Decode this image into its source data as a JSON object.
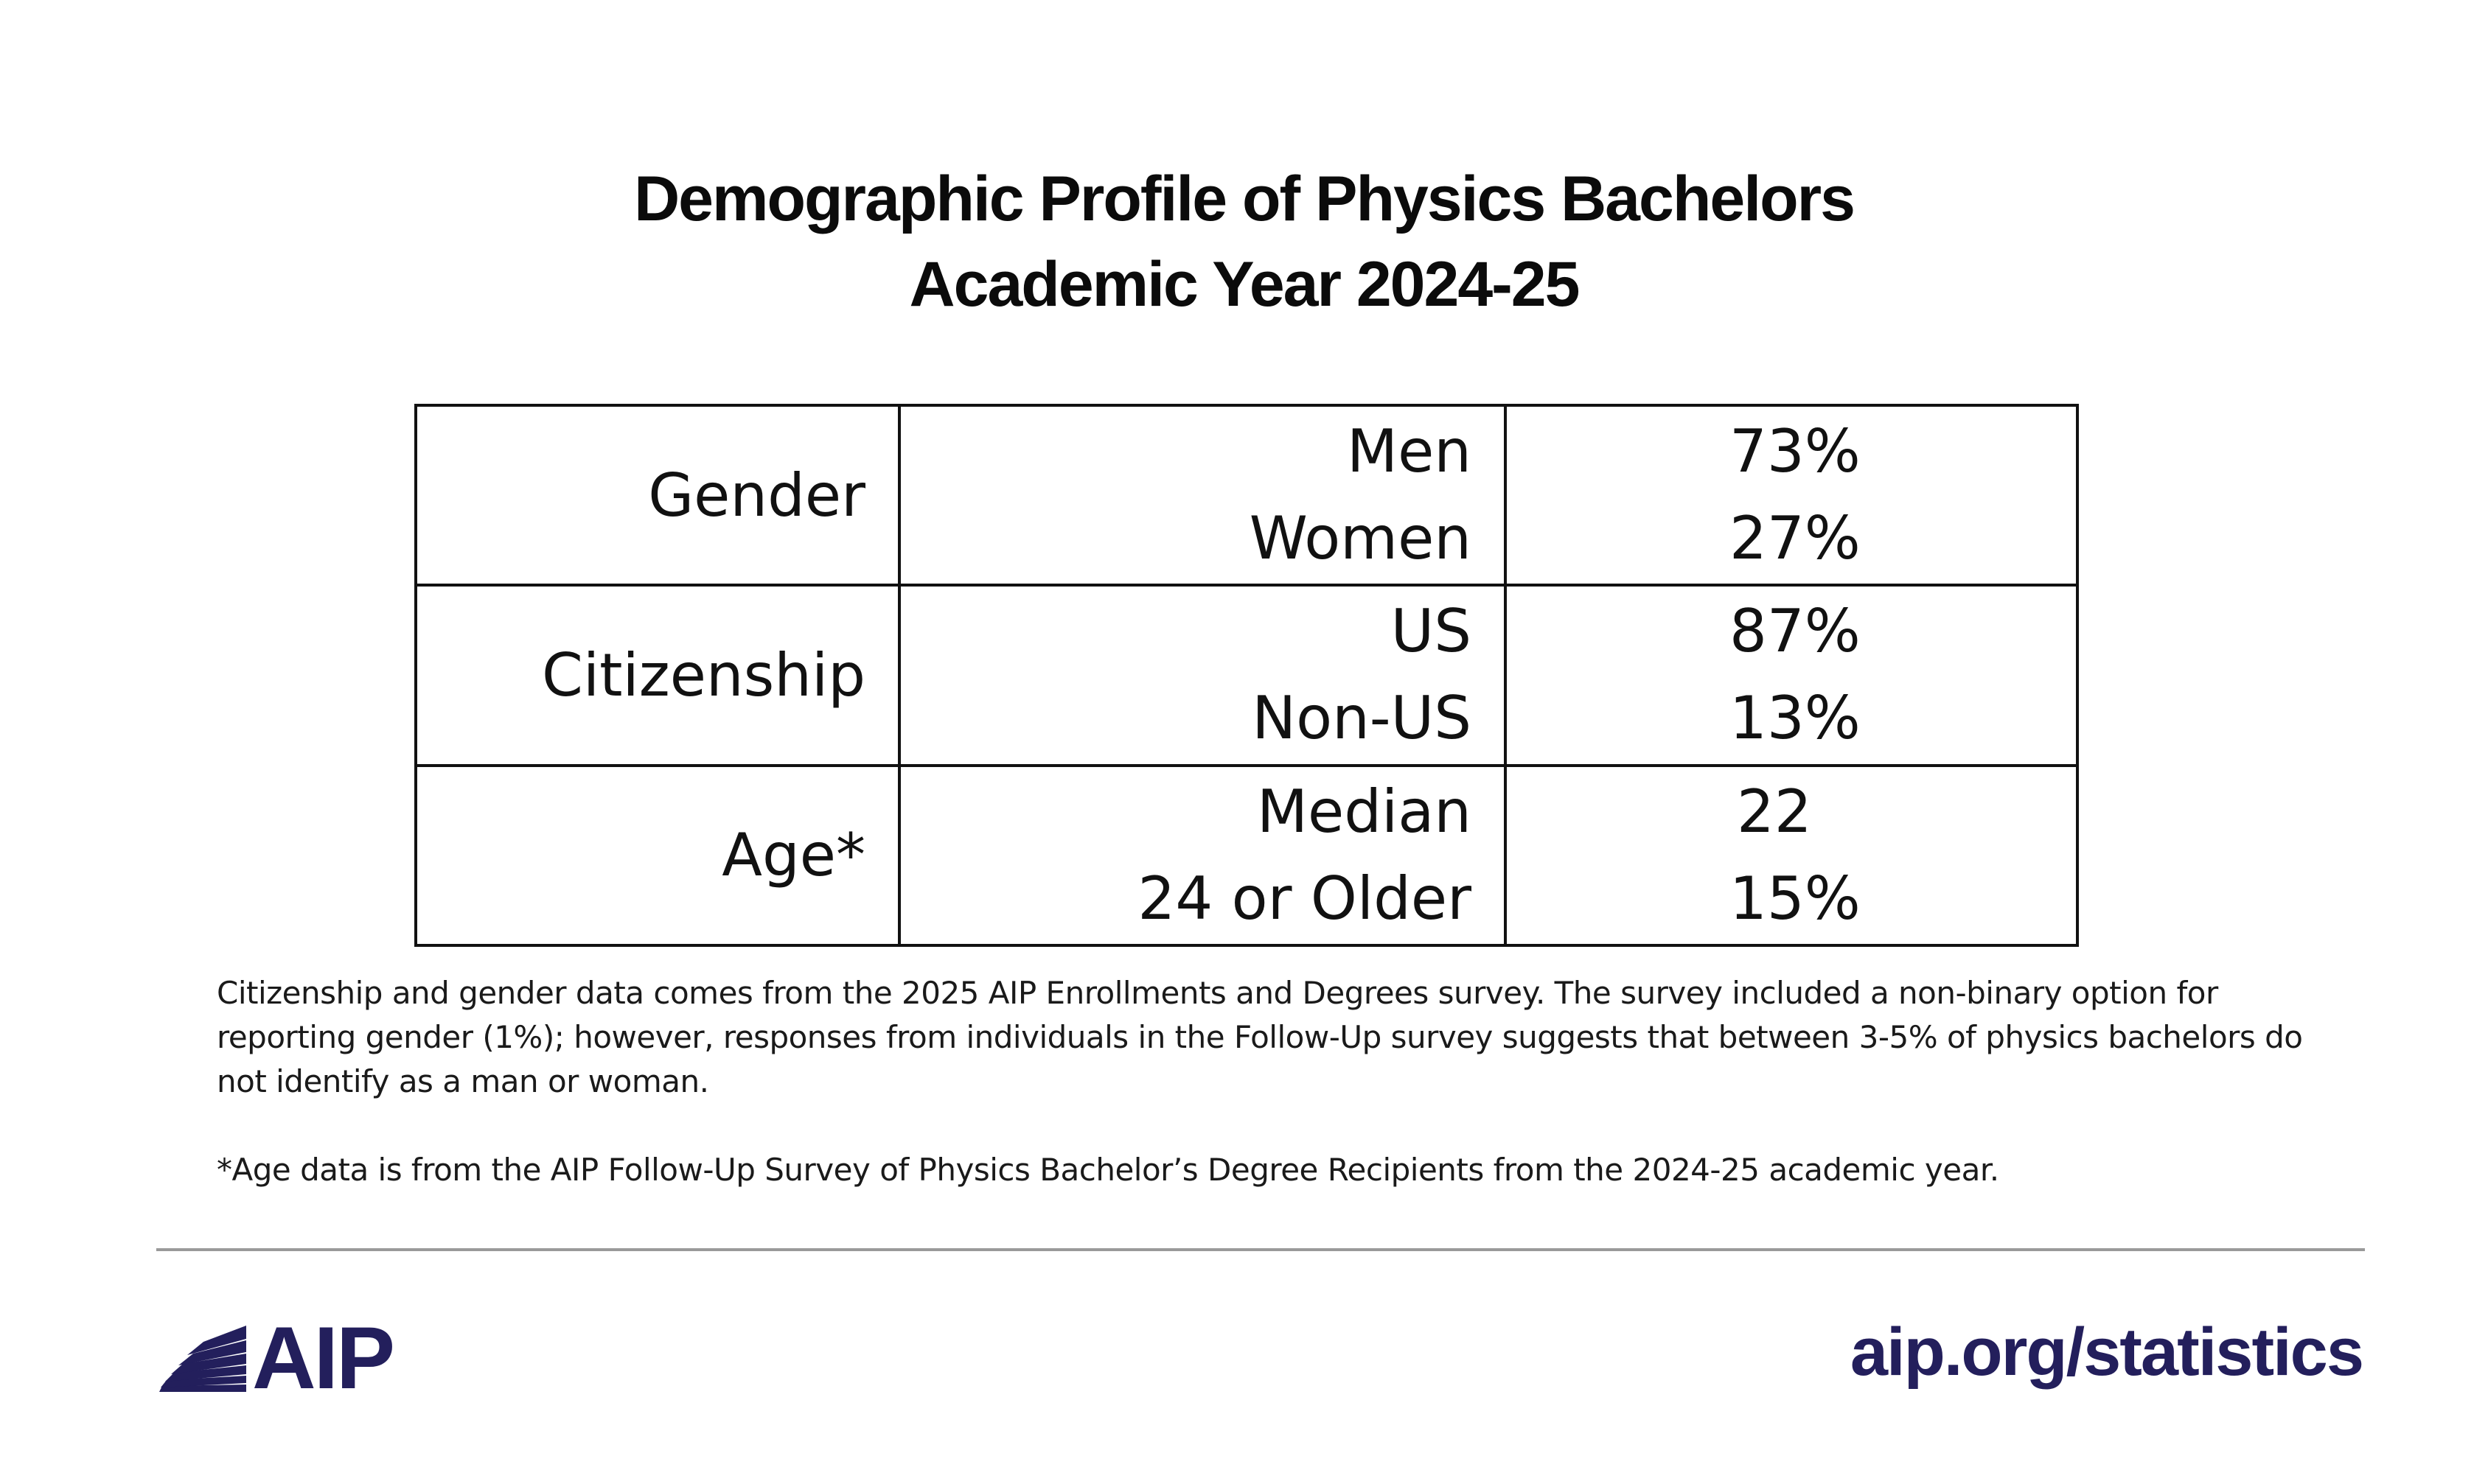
{
  "title": {
    "line1": "Demographic Profile of Physics Bachelors",
    "line2": "Academic Year 2024-25"
  },
  "chart_data": {
    "type": "table",
    "title": "Demographic Profile of Physics Bachelors",
    "subtitle": "Academic Year 2024-25",
    "rows": [
      {
        "category": "Gender",
        "items": [
          {
            "label": "Men",
            "value": "73%"
          },
          {
            "label": "Women",
            "value": "27%"
          }
        ]
      },
      {
        "category": "Citizenship",
        "items": [
          {
            "label": "US",
            "value": "87%"
          },
          {
            "label": "Non-US",
            "value": "13%"
          }
        ]
      },
      {
        "category": "Age*",
        "items": [
          {
            "label": "Median",
            "value": "22"
          },
          {
            "label": "24 or Older",
            "value": "15%"
          }
        ]
      }
    ]
  },
  "notes": {
    "first": "Citizenship and gender data comes from the 2025 AIP Enrollments and Degrees survey. The survey included a non-binary option for reporting gender (1%); however, responses from individuals in the Follow-Up survey suggests that between 3-5% of physics bachelors do not identify as a man or woman.",
    "second": "*Age data is from the AIP Follow-Up Survey of Physics Bachelor’s Degree Recipients from the 2024-25 academic year."
  },
  "footer": {
    "logo_text": "AIP",
    "logo_icon": "aip-rays-icon",
    "site": "aip.org/statistics",
    "brand_color": "#231f5c",
    "rule_color": "#9a9a9a"
  }
}
